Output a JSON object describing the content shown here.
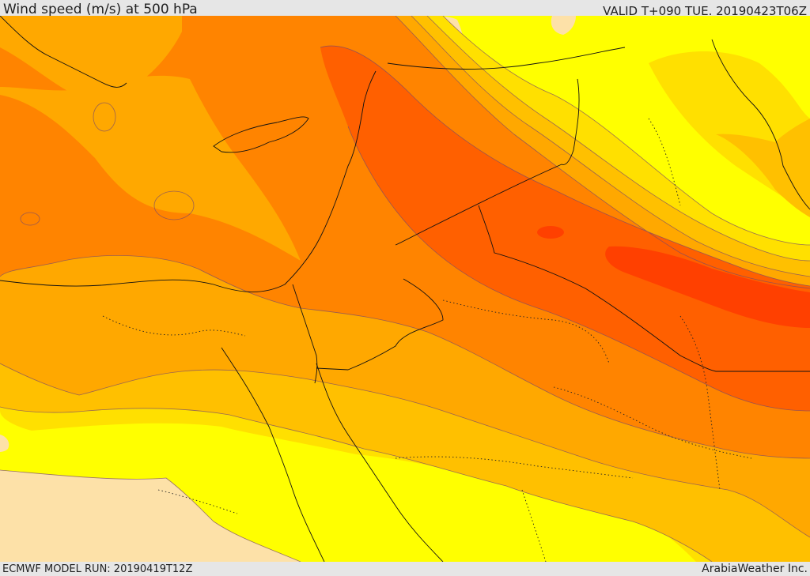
{
  "header": {
    "title": "Wind speed (m/s) at 500 hPa",
    "valid_time": "VALID T+090 TUE. 20190423T06Z"
  },
  "footer": {
    "model_run": "ECMWF MODEL RUN: 20190419T12Z",
    "credit": "ArabiaWeather Inc."
  },
  "colors": {
    "background_bar": "#e6e6e6",
    "land_low": "#fde1a8",
    "yellow": "#ffff00",
    "gold": "#ffe000",
    "amber": "#ffc000",
    "orange_light": "#ffa800",
    "orange": "#ff8400",
    "orange_dark": "#ff6000",
    "red_orange": "#ff4000"
  }
}
